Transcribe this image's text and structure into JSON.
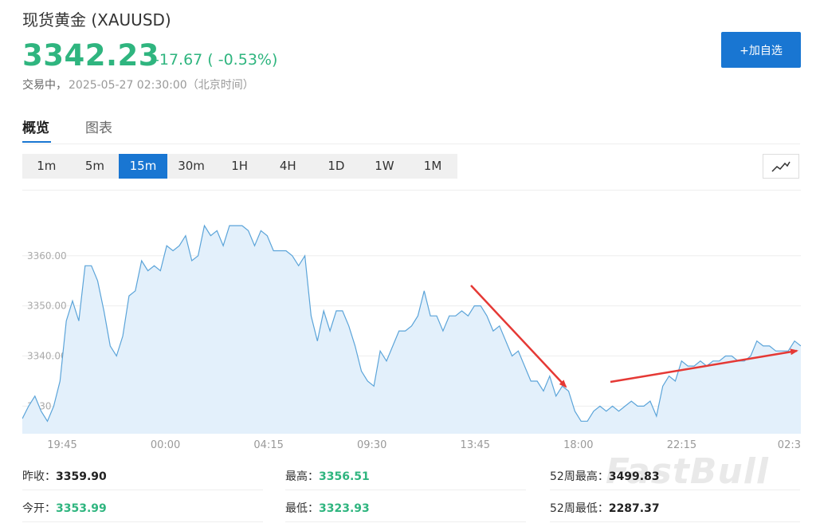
{
  "header": {
    "title": "现货黄金 (XAUUSD)",
    "price": "3342.23",
    "change": "-17.67 ( -0.53%)",
    "status": "交易中，",
    "timestamp": "2025-05-27 02:30:00（北京时间）",
    "add_button": "+加自选"
  },
  "tabs": [
    {
      "label": "概览",
      "active": true
    },
    {
      "label": "图表",
      "active": false
    }
  ],
  "periods": [
    {
      "label": "1m"
    },
    {
      "label": "5m"
    },
    {
      "label": "15m",
      "active": true
    },
    {
      "label": "30m"
    },
    {
      "label": "1H"
    },
    {
      "label": "4H"
    },
    {
      "label": "1D"
    },
    {
      "label": "1W"
    },
    {
      "label": "1M"
    }
  ],
  "chart_type_icon": "line-chart-icon",
  "colors": {
    "up_green": "#2fb57f",
    "accent_blue": "#1976d2",
    "line": "#5ba4d9",
    "area": "#e3f0fb",
    "annotation_arrow": "#e53935"
  },
  "chart_data": {
    "type": "area",
    "y_ticks": [
      "3330.00",
      "3340.00",
      "3350.00",
      "3360.00"
    ],
    "x_ticks": [
      "19:45",
      "00:00",
      "04:15",
      "09:30",
      "13:45",
      "18:00",
      "22:15",
      "02:3"
    ],
    "ylim": [
      3324.5,
      3373
    ],
    "grid": true,
    "values": [
      3327.5,
      3330,
      3332,
      3329,
      3327,
      3330,
      3335,
      3347,
      3351,
      3347,
      3358,
      3358,
      3355,
      3349,
      3342,
      3340,
      3344,
      3352,
      3353,
      3359,
      3357,
      3358,
      3357,
      3362,
      3361,
      3362,
      3364,
      3359,
      3360,
      3366,
      3364,
      3365,
      3362,
      3366,
      3366,
      3366,
      3365,
      3362,
      3365,
      3364,
      3361,
      3361,
      3361,
      3360,
      3358,
      3360,
      3348,
      3343,
      3349,
      3345,
      3349,
      3349,
      3346,
      3342,
      3337,
      3335,
      3334,
      3341,
      3339,
      3342,
      3345,
      3345,
      3346,
      3348,
      3353,
      3348,
      3348,
      3345,
      3348,
      3348,
      3349,
      3348,
      3350,
      3350,
      3348,
      3345,
      3346,
      3343,
      3340,
      3341,
      3338,
      3335,
      3335,
      3333,
      3336,
      3332,
      3334,
      3333,
      3329,
      3327,
      3327,
      3329,
      3330,
      3329,
      3330,
      3329,
      3330,
      3331,
      3330,
      3330,
      3331,
      3328,
      3334,
      3336,
      3335,
      3339,
      3338,
      3338,
      3339,
      3338,
      3339,
      3339,
      3340,
      3340,
      3339,
      3339,
      3340,
      3343,
      3342,
      3342,
      3341,
      3341,
      3341,
      3343,
      3342
    ],
    "annotations": [
      {
        "type": "arrow",
        "direction": "down",
        "color": "#e53935"
      },
      {
        "type": "arrow",
        "direction": "up",
        "color": "#e53935"
      }
    ]
  },
  "stats": [
    {
      "label": "昨收：",
      "value": "3359.90",
      "color": "black"
    },
    {
      "label": "最高：",
      "value": "3356.51",
      "color": "green"
    },
    {
      "label": "52周最高：",
      "value": "3499.83",
      "color": "black"
    },
    {
      "label": "今开：",
      "value": "3353.99",
      "color": "green"
    },
    {
      "label": "最低：",
      "value": "3323.93",
      "color": "green"
    },
    {
      "label": "52周最低：",
      "value": "2287.37",
      "color": "black"
    }
  ],
  "watermark": "FastBull"
}
